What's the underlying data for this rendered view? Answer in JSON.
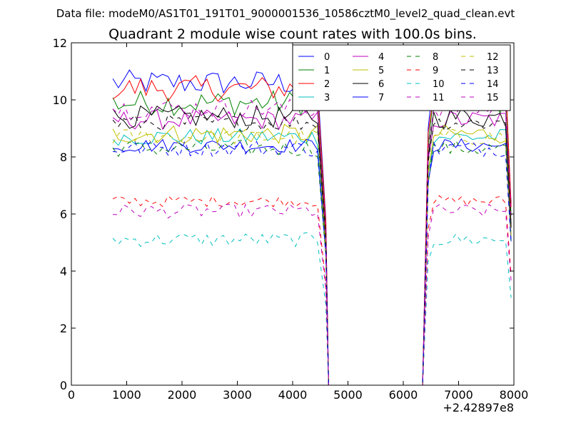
{
  "chart_data": {
    "type": "line",
    "suptitle": "Data file: modeM0/AS1T01_191T01_9000001536_10586cztM0_level2_quad_clean.evt",
    "title": "Quadrant 2 module wise count rates with 100.0s bins.",
    "xlabel": "",
    "ylabel": "",
    "xlim": [
      0,
      8000
    ],
    "ylim": [
      0,
      12
    ],
    "x_offset_label": "+2.42897e8",
    "x_ticks": [
      0,
      1000,
      2000,
      3000,
      4000,
      5000,
      6000,
      7000,
      8000
    ],
    "y_ticks": [
      0,
      2,
      4,
      6,
      8,
      10,
      12
    ],
    "legend_position": "top-right",
    "segments": {
      "seg1_start": 750,
      "seg1_end": 4500,
      "gap_start": 4650,
      "gap_end": 6350,
      "seg2_start": 6550,
      "seg2_end": 7850,
      "bin": 100
    },
    "series": [
      {
        "name": "0",
        "color": "#0000ff",
        "dashed": false,
        "level": 10.6,
        "spread": 0.45
      },
      {
        "name": "1",
        "color": "#008000",
        "dashed": false,
        "level": 9.9,
        "spread": 0.45
      },
      {
        "name": "2",
        "color": "#ff0000",
        "dashed": false,
        "level": 10.4,
        "spread": 0.45
      },
      {
        "name": "3",
        "color": "#00bfbf",
        "dashed": false,
        "level": 8.7,
        "spread": 0.3
      },
      {
        "name": "4",
        "color": "#bf00bf",
        "dashed": false,
        "level": 9.3,
        "spread": 0.35
      },
      {
        "name": "5",
        "color": "#bfbf00",
        "dashed": false,
        "level": 8.8,
        "spread": 0.35
      },
      {
        "name": "6",
        "color": "#000000",
        "dashed": false,
        "level": 9.4,
        "spread": 0.4
      },
      {
        "name": "7",
        "color": "#0000ff",
        "dashed": false,
        "level": 8.4,
        "spread": 0.25
      },
      {
        "name": "8",
        "color": "#008000",
        "dashed": true,
        "level": 8.3,
        "spread": 0.3
      },
      {
        "name": "9",
        "color": "#ff0000",
        "dashed": true,
        "level": 6.45,
        "spread": 0.2
      },
      {
        "name": "10",
        "color": "#00bfbf",
        "dashed": true,
        "level": 5.1,
        "spread": 0.25
      },
      {
        "name": "11",
        "color": "#bf00bf",
        "dashed": true,
        "level": 6.1,
        "spread": 0.25
      },
      {
        "name": "12",
        "color": "#bfbf00",
        "dashed": true,
        "level": 8.7,
        "spread": 0.3
      },
      {
        "name": "13",
        "color": "#000000",
        "dashed": true,
        "level": 9.2,
        "spread": 0.3
      },
      {
        "name": "14",
        "color": "#0000ff",
        "dashed": true,
        "level": 8.3,
        "spread": 0.3
      },
      {
        "name": "15",
        "color": "#bf00bf",
        "dashed": true,
        "level": 9.7,
        "spread": 0.35
      }
    ]
  }
}
